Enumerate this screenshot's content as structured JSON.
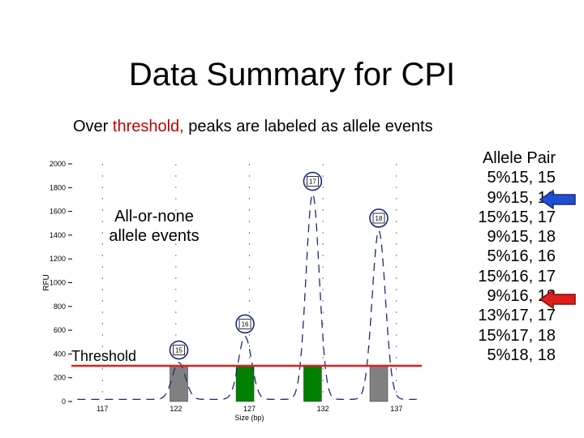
{
  "title": "Data Summary for CPI",
  "subtitle": {
    "prefix": "Over ",
    "highlight": "threshold,",
    "suffix": " peaks are labeled as allele events"
  },
  "highlight_color": "#c00000",
  "allele_pair_header": "Allele Pair",
  "allele_pairs": [
    "5%15, 15",
    "9%15, 16",
    "15%15, 17",
    "9%15, 18",
    "5%16, 16",
    "15%16, 17",
    "9%16, 18",
    "13%17, 17",
    "15%17, 18",
    "5%18, 18"
  ],
  "arrows": [
    {
      "row": 1,
      "color": "#1f4fd1"
    },
    {
      "row": 5,
      "color": "#e0201c"
    }
  ],
  "chart_data": {
    "type": "line",
    "ylabel": "RFU",
    "xlabel": "Size (bp)",
    "xlim": [
      115,
      139
    ],
    "ylim": [
      0,
      2000
    ],
    "x_ticks": [
      117,
      122,
      127,
      132,
      137
    ],
    "y_ticks": [
      0,
      200,
      400,
      600,
      800,
      1000,
      1200,
      1400,
      1600,
      1800,
      2000
    ],
    "grid": "vertical-dashed",
    "threshold": 300,
    "threshold_label": "Threshold",
    "threshold_color": "#e0201c",
    "annotation": "All-or-none\nallele events",
    "peaks": [
      {
        "label": "15",
        "x": 122.2,
        "height": 310,
        "bar_color": "#808080"
      },
      {
        "label": "16",
        "x": 126.7,
        "height": 530,
        "bar_color": "#008000"
      },
      {
        "label": "17",
        "x": 131.3,
        "height": 1730,
        "bar_color": "#008000"
      },
      {
        "label": "18",
        "x": 135.8,
        "height": 1420,
        "bar_color": "#808080"
      }
    ]
  }
}
